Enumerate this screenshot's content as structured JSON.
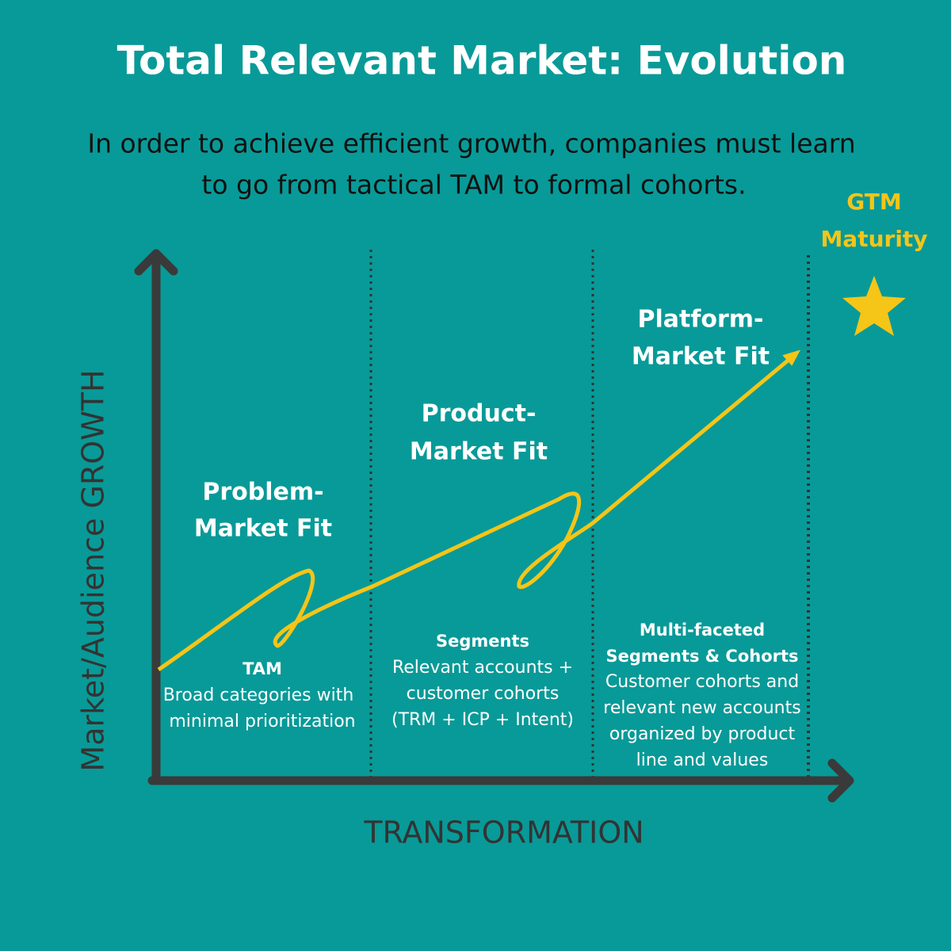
{
  "title": "Total Relevant Market: Evolution",
  "subtitle": [
    "In order to achieve efficient growth, companies must learn",
    "to go from tactical TAM to formal cohorts."
  ],
  "y_axis_label": "Market/Audience GROWTH",
  "x_axis_label": "TRANSFORMATION",
  "maturity": [
    "GTM",
    "Maturity"
  ],
  "stages": [
    {
      "fit": [
        "Problem-",
        "Market Fit"
      ],
      "heading": [
        "TAM"
      ],
      "description": [
        "Broad categories with",
        "minimal prioritization"
      ]
    },
    {
      "fit": [
        "Product-",
        "Market Fit"
      ],
      "heading": [
        "Segments"
      ],
      "description": [
        "Relevant accounts +",
        "customer cohorts",
        "(TRM + ICP + Intent)"
      ]
    },
    {
      "fit": [
        "Platform-",
        "Market Fit"
      ],
      "heading": [
        "Multi-faceted",
        "Segments & Cohorts"
      ],
      "description": [
        "Customer cohorts and",
        "relevant new accounts",
        "organized by product",
        "line and values"
      ]
    }
  ]
}
